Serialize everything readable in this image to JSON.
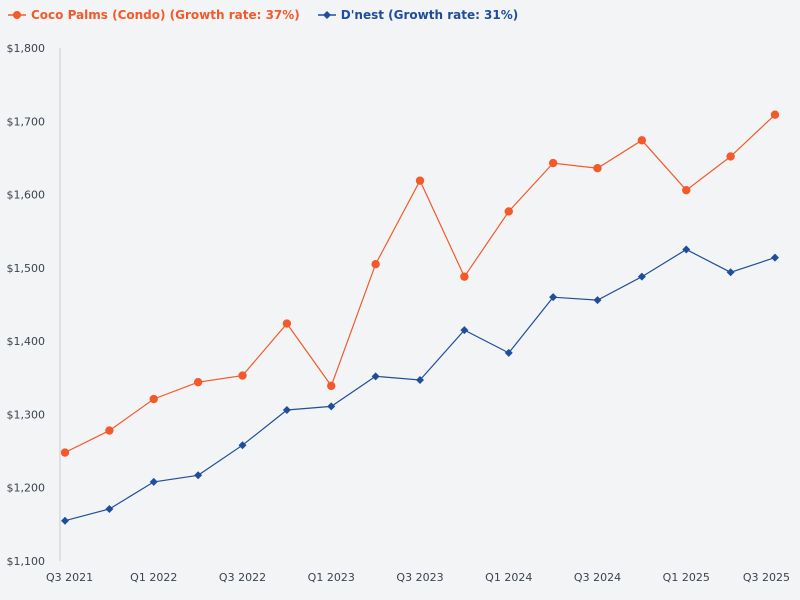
{
  "chart_data": {
    "type": "line",
    "title": "",
    "xlabel": "",
    "ylabel": "",
    "ylim": [
      1100,
      1800
    ],
    "yticks": [
      1100,
      1200,
      1300,
      1400,
      1500,
      1600,
      1700,
      1800
    ],
    "ytick_labels": [
      "$1,100",
      "$1,200",
      "$1,300",
      "$1,400",
      "$1,500",
      "$1,600",
      "$1,700",
      "$1,800"
    ],
    "categories": [
      "Q3 2021",
      "Q4 2021",
      "Q1 2022",
      "Q2 2022",
      "Q3 2022",
      "Q4 2022",
      "Q1 2023",
      "Q2 2023",
      "Q3 2023",
      "Q4 2023",
      "Q1 2024",
      "Q2 2024",
      "Q3 2024",
      "Q4 2024",
      "Q1 2025",
      "Q2 2025",
      "Q3 2025"
    ],
    "xtick_labels": [
      "Q3 2021",
      "Q1 2022",
      "Q3 2022",
      "Q1 2023",
      "Q3 2023",
      "Q1 2024",
      "Q3 2024",
      "Q1 2025",
      "Q3 2025"
    ],
    "grid": false,
    "legend_position": "top-left",
    "series": [
      {
        "name": "Coco Palms (Condo) (Growth rate: 37%)",
        "color": "#f4592a",
        "marker": "circle",
        "values": [
          1248,
          1278,
          1321,
          1344,
          1353,
          1424,
          1339,
          1505,
          1619,
          1488,
          1577,
          1643,
          1636,
          1674,
          1606,
          1652,
          1709
        ]
      },
      {
        "name": "D'nest (Growth rate: 31%)",
        "color": "#1f4e9b",
        "marker": "diamond",
        "values": [
          1155,
          1171,
          1208,
          1217,
          1258,
          1306,
          1311,
          1352,
          1347,
          1415,
          1384,
          1460,
          1456,
          1488,
          1525,
          1494,
          1514
        ]
      }
    ]
  }
}
